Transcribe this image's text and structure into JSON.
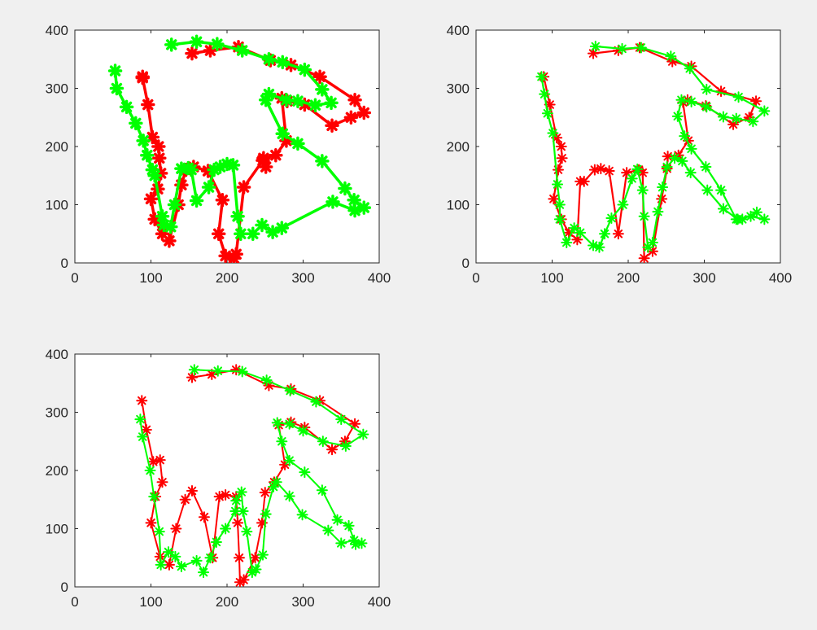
{
  "figure": {
    "background": "#f0f0f0",
    "axes_background": "#ffffff",
    "axis_color": "#262626",
    "marker": "asterisk",
    "colors": {
      "reference": "#ff0000",
      "estimate": "#00ff00"
    }
  },
  "chart_data": [
    {
      "type": "line",
      "panel": "top-left",
      "xlim": [
        0,
        400
      ],
      "ylim": [
        0,
        400
      ],
      "xticks": [
        "0",
        "100",
        "200",
        "300",
        "400"
      ],
      "yticks": [
        "0",
        "100",
        "200",
        "300",
        "400"
      ],
      "grid": false,
      "series": [
        {
          "color": "#ff0000",
          "x": [
            154,
            178,
            215,
            257,
            284,
            322,
            368,
            380,
            363,
            338,
            302,
            279,
            272,
            278,
            264,
            248,
            251,
            247,
            222,
            212,
            209,
            198,
            189,
            194,
            175,
            156,
            146,
            140,
            136,
            124,
            115,
            105,
            100,
            109,
            113,
            111,
            110,
            102,
            96,
            89,
            89
          ],
          "y": [
            360,
            365,
            371,
            348,
            340,
            320,
            280,
            258,
            250,
            236,
            272,
            278,
            283,
            210,
            185,
            180,
            165,
            176,
            130,
            15,
            8,
            12,
            50,
            108,
            158,
            165,
            160,
            134,
            100,
            38,
            50,
            75,
            110,
            127,
            154,
            180,
            200,
            216,
            272,
            318,
            320
          ]
        },
        {
          "color": "#00ff00",
          "x": [
            127,
            160,
            187,
            220,
            255,
            273,
            302,
            325,
            337,
            316,
            293,
            278,
            255,
            251,
            273,
            293,
            325,
            355,
            367,
            380,
            368,
            339,
            272,
            260,
            246,
            234,
            218,
            214,
            208,
            200,
            191,
            183,
            176,
            160,
            153,
            149,
            140,
            131,
            126,
            117,
            115,
            105,
            102,
            95,
            90,
            80,
            68,
            55,
            53
          ],
          "y": [
            375,
            380,
            376,
            365,
            350,
            345,
            332,
            298,
            275,
            271,
            278,
            280,
            290,
            280,
            222,
            205,
            175,
            128,
            108,
            95,
            90,
            105,
            60,
            53,
            65,
            50,
            50,
            80,
            168,
            170,
            165,
            160,
            130,
            107,
            160,
            163,
            162,
            100,
            62,
            65,
            80,
            150,
            160,
            185,
            210,
            240,
            268,
            300,
            330
          ]
        }
      ]
    },
    {
      "type": "line",
      "panel": "top-right",
      "xlim": [
        0,
        400
      ],
      "ylim": [
        0,
        400
      ],
      "xticks": [
        "0",
        "100",
        "200",
        "300",
        "400"
      ],
      "yticks": [
        "0",
        "100",
        "200",
        "300",
        "400"
      ],
      "grid": false,
      "series": [
        {
          "color": "#ff0000",
          "x": [
            154,
            187,
            215,
            258,
            283,
            322,
            368,
            359,
            338,
            302,
            278,
            272,
            279,
            266,
            252,
            251,
            244,
            232,
            221,
            219,
            214,
            198,
            187,
            175,
            164,
            156,
            142,
            137,
            133,
            122,
            112,
            102,
            108,
            113,
            112,
            106,
            97,
            89
          ],
          "y": [
            360,
            365,
            370,
            346,
            338,
            295,
            278,
            250,
            238,
            270,
            280,
            276,
            210,
            185,
            183,
            162,
            110,
            20,
            8,
            155,
            160,
            155,
            50,
            158,
            162,
            160,
            140,
            140,
            40,
            52,
            75,
            110,
            160,
            180,
            200,
            215,
            272,
            320
          ]
        },
        {
          "color": "#00ff00",
          "x": [
            157,
            192,
            217,
            256,
            281,
            303,
            345,
            379,
            364,
            342,
            325,
            303,
            283,
            270,
            265,
            274,
            283,
            302,
            322,
            342,
            361,
            379,
            369,
            350,
            344,
            325,
            304,
            282,
            271,
            261,
            251,
            245,
            239,
            232,
            226,
            221,
            219,
            212,
            205,
            193,
            178,
            169,
            162,
            154,
            137,
            129,
            119,
            110,
            110,
            107,
            101,
            94,
            90,
            86
          ],
          "y": [
            372,
            368,
            370,
            355,
            334,
            298,
            285,
            261,
            243,
            248,
            251,
            268,
            277,
            280,
            252,
            218,
            196,
            165,
            125,
            75,
            80,
            75,
            87,
            75,
            75,
            93,
            125,
            155,
            175,
            180,
            165,
            130,
            88,
            35,
            27,
            80,
            125,
            161,
            145,
            100,
            77,
            50,
            27,
            30,
            52,
            60,
            35,
            75,
            100,
            135,
            223,
            257,
            290,
            320
          ]
        }
      ]
    },
    {
      "type": "line",
      "panel": "bottom-left",
      "xlim": [
        0,
        400
      ],
      "ylim": [
        0,
        400
      ],
      "xticks": [
        "0",
        "100",
        "200",
        "300",
        "400"
      ],
      "yticks": [
        "0",
        "100",
        "200",
        "300",
        "400"
      ],
      "grid": false,
      "series": [
        {
          "color": "#ff0000",
          "x": [
            154,
            180,
            212,
            255,
            284,
            322,
            368,
            355,
            338,
            302,
            284,
            268,
            276,
            262,
            250,
            246,
            237,
            222,
            217,
            216,
            214,
            212,
            198,
            190,
            181,
            170,
            154,
            145,
            133,
            124,
            112,
            100,
            106,
            115,
            112,
            103,
            94,
            88
          ],
          "y": [
            360,
            365,
            373,
            346,
            340,
            320,
            280,
            250,
            236,
            274,
            283,
            278,
            210,
            180,
            162,
            110,
            50,
            12,
            8,
            50,
            110,
            155,
            158,
            155,
            50,
            120,
            165,
            150,
            100,
            38,
            52,
            110,
            155,
            180,
            218,
            215,
            270,
            320
          ]
        },
        {
          "color": "#00ff00",
          "x": [
            157,
            188,
            220,
            252,
            283,
            317,
            350,
            379,
            356,
            326,
            300,
            282,
            266,
            272,
            282,
            302,
            325,
            345,
            360,
            369,
            377,
            367,
            350,
            333,
            299,
            282,
            265,
            261,
            251,
            247,
            238,
            233,
            226,
            221,
            219,
            212,
            211,
            198,
            186,
            178,
            169,
            160,
            140,
            132,
            123,
            113,
            111,
            104,
            99,
            89,
            86
          ],
          "y": [
            373,
            371,
            370,
            355,
            337,
            318,
            288,
            262,
            242,
            250,
            268,
            280,
            282,
            250,
            217,
            197,
            166,
            115,
            105,
            73,
            75,
            80,
            75,
            97,
            124,
            156,
            180,
            172,
            125,
            55,
            30,
            25,
            95,
            130,
            163,
            148,
            130,
            100,
            77,
            50,
            25,
            45,
            35,
            52,
            60,
            38,
            95,
            155,
            200,
            258,
            288
          ]
        }
      ]
    }
  ]
}
